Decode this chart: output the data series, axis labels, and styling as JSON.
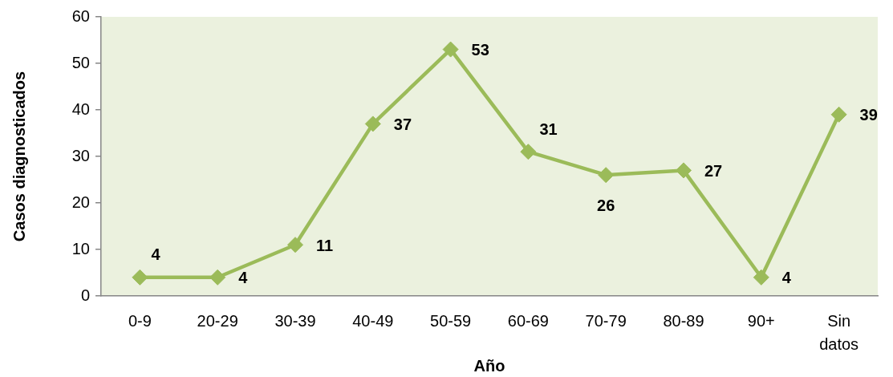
{
  "chart_data": {
    "type": "line",
    "xlabel": "Año",
    "ylabel": "Casos diagnosticados",
    "categories": [
      "0-9",
      "20-29",
      "30-39",
      "40-49",
      "50-59",
      "60-69",
      "70-79",
      "80-89",
      "90+",
      "Sin datos"
    ],
    "series": [
      {
        "color": "#9bbb59",
        "values": [
          4,
          4,
          11,
          37,
          53,
          31,
          26,
          27,
          4,
          39
        ]
      }
    ],
    "ylim": [
      0,
      60
    ],
    "yticks": [
      0,
      10,
      20,
      30,
      40,
      50,
      60
    ],
    "grid": false,
    "legend": false,
    "marker": "diamond",
    "line_style": "solid",
    "data_labels": true
  }
}
